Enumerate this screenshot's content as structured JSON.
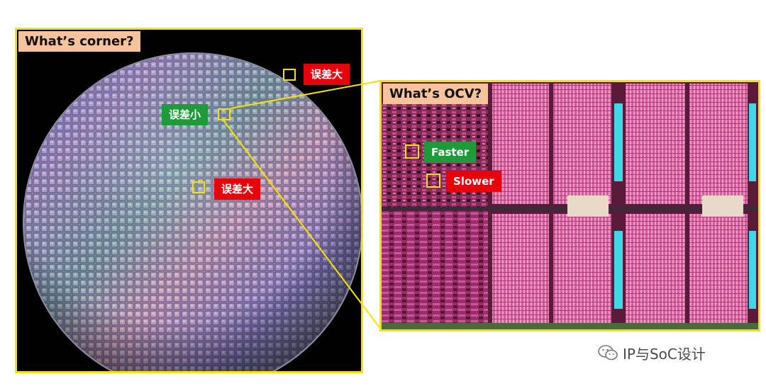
{
  "left_panel": {
    "title": "What’s corner?"
  },
  "right_panel": {
    "title": "What’s OCV?"
  },
  "wafer_labels": {
    "top_right": "误差大",
    "center": "误差小",
    "lower": "误差大"
  },
  "die_labels": {
    "faster": "Faster",
    "slower": "Slower"
  },
  "watermark": {
    "text": "IP与SoC设计",
    "icon": "wechat-icon"
  },
  "colors": {
    "frame": "#f5e400",
    "title_bg": "#f6c39c",
    "large_error": "#e8000b",
    "small_error": "#1f9a3a"
  }
}
